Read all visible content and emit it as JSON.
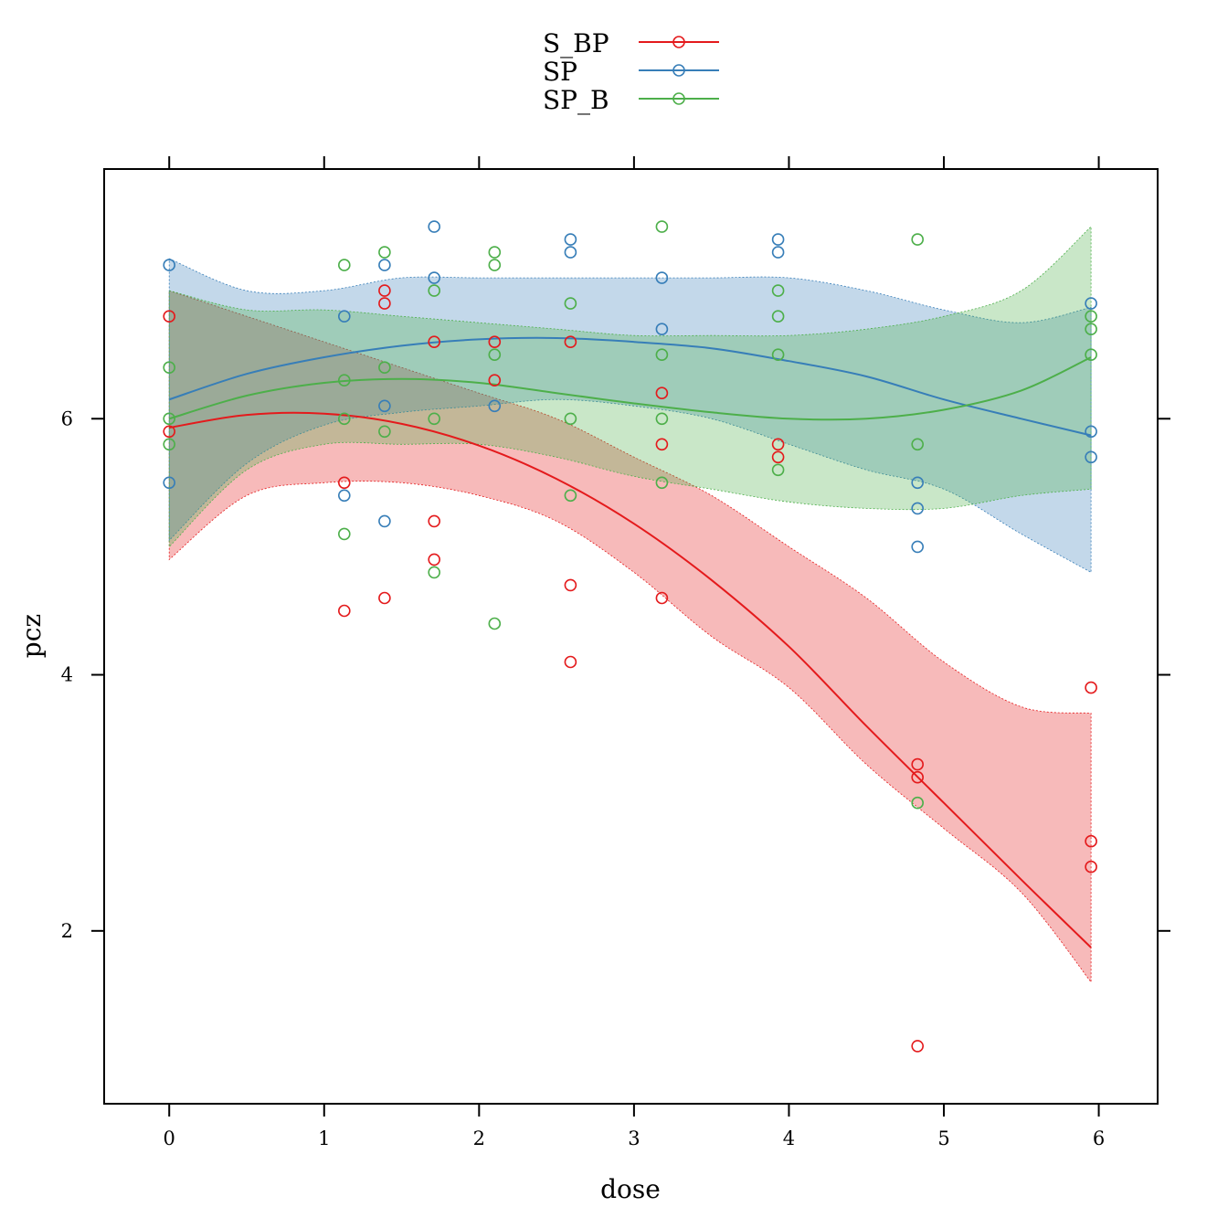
{
  "chart_data": {
    "type": "scatter",
    "xlabel": "dose",
    "ylabel": "pcz",
    "xlim": [
      -0.42,
      6.38
    ],
    "ylim": [
      0.65,
      7.95
    ],
    "xticks": [
      0,
      1,
      2,
      3,
      4,
      5,
      6
    ],
    "yticks": [
      2,
      4,
      6
    ],
    "grid": false,
    "legend": "top",
    "series": [
      {
        "name": "S_BP",
        "color": "#e41a1c",
        "points": [
          [
            0,
            6.8
          ],
          [
            0,
            5.9
          ],
          [
            1.13,
            5.5
          ],
          [
            1.13,
            4.5
          ],
          [
            1.39,
            7.0
          ],
          [
            1.39,
            6.9
          ],
          [
            1.39,
            4.6
          ],
          [
            1.71,
            6.6
          ],
          [
            1.71,
            5.2
          ],
          [
            1.71,
            4.9
          ],
          [
            2.1,
            6.6
          ],
          [
            2.1,
            6.3
          ],
          [
            2.59,
            6.6
          ],
          [
            2.59,
            4.7
          ],
          [
            2.59,
            4.1
          ],
          [
            3.18,
            6.2
          ],
          [
            3.18,
            5.8
          ],
          [
            3.18,
            4.6
          ],
          [
            3.93,
            5.8
          ],
          [
            3.93,
            5.7
          ],
          [
            4.83,
            3.3
          ],
          [
            4.83,
            3.2
          ],
          [
            4.83,
            1.1
          ],
          [
            5.95,
            3.9
          ],
          [
            5.95,
            2.7
          ],
          [
            5.95,
            2.5
          ]
        ],
        "fit": [
          [
            0,
            5.93
          ],
          [
            0.5,
            6.03
          ],
          [
            1.0,
            6.04
          ],
          [
            1.5,
            5.96
          ],
          [
            2.0,
            5.79
          ],
          [
            2.5,
            5.53
          ],
          [
            3.0,
            5.18
          ],
          [
            3.5,
            4.74
          ],
          [
            4.0,
            4.22
          ],
          [
            4.5,
            3.6
          ],
          [
            5.0,
            3.0
          ],
          [
            5.5,
            2.4
          ],
          [
            5.95,
            1.87
          ]
        ],
        "band_upper": [
          [
            0,
            7.0
          ],
          [
            0.5,
            6.8
          ],
          [
            1.0,
            6.6
          ],
          [
            1.5,
            6.4
          ],
          [
            2.0,
            6.2
          ],
          [
            2.5,
            6.0
          ],
          [
            3.0,
            5.7
          ],
          [
            3.5,
            5.4
          ],
          [
            4.0,
            5.0
          ],
          [
            4.5,
            4.6
          ],
          [
            5.0,
            4.1
          ],
          [
            5.5,
            3.75
          ],
          [
            5.95,
            3.7
          ]
        ],
        "band_lower": [
          [
            0,
            4.9
          ],
          [
            0.5,
            5.4
          ],
          [
            1.0,
            5.5
          ],
          [
            1.5,
            5.5
          ],
          [
            2.0,
            5.4
          ],
          [
            2.5,
            5.2
          ],
          [
            3.0,
            4.8
          ],
          [
            3.5,
            4.3
          ],
          [
            4.0,
            3.9
          ],
          [
            4.5,
            3.3
          ],
          [
            5.0,
            2.8
          ],
          [
            5.5,
            2.3
          ],
          [
            5.95,
            1.6
          ]
        ]
      },
      {
        "name": "SP",
        "color": "#377eb8",
        "points": [
          [
            0,
            7.2
          ],
          [
            0,
            5.5
          ],
          [
            1.13,
            6.8
          ],
          [
            1.13,
            5.4
          ],
          [
            1.39,
            7.2
          ],
          [
            1.39,
            6.1
          ],
          [
            1.39,
            5.2
          ],
          [
            1.71,
            7.5
          ],
          [
            1.71,
            7.1
          ],
          [
            2.1,
            6.1
          ],
          [
            2.59,
            7.4
          ],
          [
            2.59,
            7.3
          ],
          [
            3.18,
            7.1
          ],
          [
            3.18,
            6.7
          ],
          [
            3.93,
            7.4
          ],
          [
            3.93,
            7.3
          ],
          [
            4.83,
            5.5
          ],
          [
            4.83,
            5.3
          ],
          [
            4.83,
            5.0
          ],
          [
            5.95,
            6.9
          ],
          [
            5.95,
            5.9
          ],
          [
            5.95,
            5.7
          ]
        ],
        "fit": [
          [
            0,
            6.15
          ],
          [
            0.5,
            6.35
          ],
          [
            1.0,
            6.48
          ],
          [
            1.5,
            6.57
          ],
          [
            2.0,
            6.62
          ],
          [
            2.5,
            6.63
          ],
          [
            3.0,
            6.6
          ],
          [
            3.5,
            6.55
          ],
          [
            4.0,
            6.45
          ],
          [
            4.5,
            6.33
          ],
          [
            5.0,
            6.15
          ],
          [
            5.5,
            6.0
          ],
          [
            5.95,
            5.87
          ]
        ],
        "band_upper": [
          [
            0,
            7.25
          ],
          [
            0.5,
            7.0
          ],
          [
            1.0,
            7.0
          ],
          [
            1.5,
            7.1
          ],
          [
            2.0,
            7.1
          ],
          [
            2.5,
            7.1
          ],
          [
            3.0,
            7.1
          ],
          [
            3.5,
            7.1
          ],
          [
            4.0,
            7.1
          ],
          [
            4.5,
            7.0
          ],
          [
            5.0,
            6.85
          ],
          [
            5.5,
            6.75
          ],
          [
            5.95,
            6.87
          ]
        ],
        "band_lower": [
          [
            0,
            5.05
          ],
          [
            0.5,
            5.65
          ],
          [
            1.0,
            5.95
          ],
          [
            1.5,
            6.05
          ],
          [
            2.0,
            6.1
          ],
          [
            2.5,
            6.15
          ],
          [
            3.0,
            6.1
          ],
          [
            3.5,
            6.0
          ],
          [
            4.0,
            5.8
          ],
          [
            4.5,
            5.6
          ],
          [
            5.0,
            5.45
          ],
          [
            5.5,
            5.1
          ],
          [
            5.95,
            4.8
          ]
        ]
      },
      {
        "name": "SP_B",
        "color": "#4daf4a",
        "points": [
          [
            0,
            6.4
          ],
          [
            0,
            6.0
          ],
          [
            0,
            5.8
          ],
          [
            1.13,
            7.2
          ],
          [
            1.13,
            6.3
          ],
          [
            1.13,
            6.0
          ],
          [
            1.13,
            5.1
          ],
          [
            1.39,
            7.3
          ],
          [
            1.39,
            6.4
          ],
          [
            1.39,
            5.9
          ],
          [
            1.71,
            7.0
          ],
          [
            1.71,
            6.0
          ],
          [
            1.71,
            4.8
          ],
          [
            2.1,
            7.3
          ],
          [
            2.1,
            7.2
          ],
          [
            2.1,
            6.5
          ],
          [
            2.1,
            4.4
          ],
          [
            2.59,
            6.9
          ],
          [
            2.59,
            6.0
          ],
          [
            2.59,
            5.4
          ],
          [
            3.18,
            7.5
          ],
          [
            3.18,
            6.5
          ],
          [
            3.18,
            6.0
          ],
          [
            3.18,
            5.5
          ],
          [
            3.93,
            7.0
          ],
          [
            3.93,
            6.8
          ],
          [
            3.93,
            6.5
          ],
          [
            3.93,
            5.6
          ],
          [
            4.83,
            7.4
          ],
          [
            4.83,
            5.8
          ],
          [
            4.83,
            3.0
          ],
          [
            5.95,
            6.8
          ],
          [
            5.95,
            6.7
          ],
          [
            5.95,
            6.5
          ]
        ],
        "fit": [
          [
            0,
            6.0
          ],
          [
            0.5,
            6.18
          ],
          [
            1.0,
            6.28
          ],
          [
            1.5,
            6.31
          ],
          [
            2.0,
            6.28
          ],
          [
            2.5,
            6.2
          ],
          [
            3.0,
            6.12
          ],
          [
            3.5,
            6.05
          ],
          [
            4.0,
            6.0
          ],
          [
            4.5,
            6.0
          ],
          [
            5.0,
            6.07
          ],
          [
            5.5,
            6.22
          ],
          [
            5.95,
            6.48
          ]
        ],
        "band_upper": [
          [
            0,
            7.0
          ],
          [
            0.5,
            6.85
          ],
          [
            1.0,
            6.85
          ],
          [
            1.5,
            6.8
          ],
          [
            2.0,
            6.75
          ],
          [
            2.5,
            6.7
          ],
          [
            3.0,
            6.65
          ],
          [
            3.5,
            6.65
          ],
          [
            4.0,
            6.65
          ],
          [
            4.5,
            6.7
          ],
          [
            5.0,
            6.8
          ],
          [
            5.5,
            7.0
          ],
          [
            5.95,
            7.5
          ]
        ],
        "band_lower": [
          [
            0,
            5.0
          ],
          [
            0.5,
            5.6
          ],
          [
            1.0,
            5.8
          ],
          [
            1.5,
            5.8
          ],
          [
            2.0,
            5.8
          ],
          [
            2.5,
            5.7
          ],
          [
            3.0,
            5.55
          ],
          [
            3.5,
            5.45
          ],
          [
            4.0,
            5.35
          ],
          [
            4.5,
            5.3
          ],
          [
            5.0,
            5.3
          ],
          [
            5.5,
            5.4
          ],
          [
            5.95,
            5.45
          ]
        ]
      }
    ]
  }
}
